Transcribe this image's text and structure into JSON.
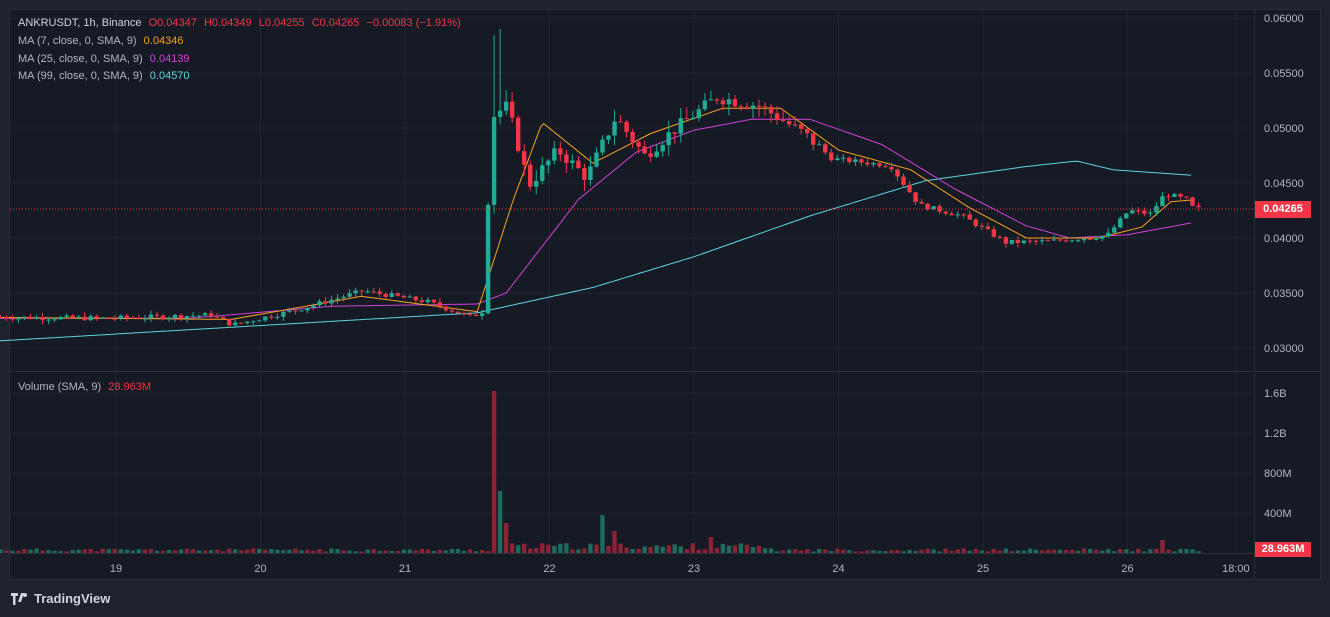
{
  "symbol": {
    "pair": "ANKRUSDT, 1h, Binance",
    "o": "O0.04347",
    "h": "H0.04349",
    "l": "L0.04255",
    "c": "C0.04265",
    "change": "−0.00083 (−1.91%)"
  },
  "indicators": [
    {
      "label": "MA (7, close, 0, SMA, 9)",
      "value": "0.04346",
      "color": "#f7a21b"
    },
    {
      "label": "MA (25, close, 0, SMA, 9)",
      "value": "0.04139",
      "color": "#d042d6"
    },
    {
      "label": "MA (99, close, 0, SMA, 9)",
      "value": "0.04570",
      "color": "#5cd6e0"
    }
  ],
  "volume": {
    "label": "Volume (SMA, 9)",
    "value": "28.963M"
  },
  "price_axis": [
    "0.06000",
    "0.05500",
    "0.05000",
    "0.04500",
    "0.04000",
    "0.03500",
    "0.03000"
  ],
  "volume_axis": [
    "1.6B",
    "1.2B",
    "800M",
    "400M"
  ],
  "time_axis": [
    "19",
    "20",
    "21",
    "22",
    "23",
    "24",
    "25",
    "26",
    "18:00"
  ],
  "last_price": "0.04265",
  "last_volume": "28.963M",
  "colors": {
    "up": "#22ab94",
    "down": "#f23645",
    "ma7": "#f7a21b",
    "ma25": "#d042d6",
    "ma99": "#5cd6e0",
    "grid": "#1f2431"
  },
  "brand": "TradingView",
  "chart_data": {
    "type": "candlestick",
    "price_range": [
      0.029,
      0.0612
    ],
    "volume_range": [
      0,
      1.6
    ],
    "price_key_points": [
      {
        "day": 18.2,
        "price": 0.0328
      },
      {
        "day": 19.0,
        "price": 0.0327
      },
      {
        "day": 19.7,
        "price": 0.033
      },
      {
        "day": 19.85,
        "price": 0.0321
      },
      {
        "day": 20.3,
        "price": 0.0335
      },
      {
        "day": 20.75,
        "price": 0.0352
      },
      {
        "day": 21.2,
        "price": 0.0342
      },
      {
        "day": 21.5,
        "price": 0.0328
      },
      {
        "day": 21.6,
        "price": 0.0335
      },
      {
        "day": 21.63,
        "price": 0.051
      },
      {
        "day": 21.75,
        "price": 0.052
      },
      {
        "day": 21.9,
        "price": 0.0448
      },
      {
        "day": 22.1,
        "price": 0.048
      },
      {
        "day": 22.3,
        "price": 0.0455
      },
      {
        "day": 22.5,
        "price": 0.051
      },
      {
        "day": 22.7,
        "price": 0.0475
      },
      {
        "day": 22.9,
        "price": 0.0498
      },
      {
        "day": 23.2,
        "price": 0.0528
      },
      {
        "day": 23.5,
        "price": 0.052
      },
      {
        "day": 23.8,
        "price": 0.0495
      },
      {
        "day": 24.0,
        "price": 0.0472
      },
      {
        "day": 24.4,
        "price": 0.0466
      },
      {
        "day": 24.6,
        "price": 0.043
      },
      {
        "day": 24.9,
        "price": 0.042
      },
      {
        "day": 25.2,
        "price": 0.0396
      },
      {
        "day": 25.5,
        "price": 0.0397
      },
      {
        "day": 25.9,
        "price": 0.0402
      },
      {
        "day": 26.05,
        "price": 0.0425
      },
      {
        "day": 26.2,
        "price": 0.0422
      },
      {
        "day": 26.3,
        "price": 0.044
      },
      {
        "day": 26.45,
        "price": 0.0435
      },
      {
        "day": 26.5,
        "price": 0.04265
      }
    ],
    "ma99_points": [
      {
        "day": 18.0,
        "price": 0.0305
      },
      {
        "day": 21.5,
        "price": 0.0332
      },
      {
        "day": 22.3,
        "price": 0.0355
      },
      {
        "day": 23.0,
        "price": 0.0383
      },
      {
        "day": 23.8,
        "price": 0.042
      },
      {
        "day": 24.6,
        "price": 0.0452
      },
      {
        "day": 25.3,
        "price": 0.0465
      },
      {
        "day": 25.65,
        "price": 0.047
      },
      {
        "day": 25.9,
        "price": 0.0462
      },
      {
        "day": 26.45,
        "price": 0.0457
      }
    ],
    "ma25_points": [
      {
        "day": 18.0,
        "price": 0.0327
      },
      {
        "day": 19.5,
        "price": 0.0327
      },
      {
        "day": 20.5,
        "price": 0.0338
      },
      {
        "day": 21.5,
        "price": 0.034
      },
      {
        "day": 21.7,
        "price": 0.035
      },
      {
        "day": 22.2,
        "price": 0.0435
      },
      {
        "day": 22.6,
        "price": 0.0478
      },
      {
        "day": 23.0,
        "price": 0.0498
      },
      {
        "day": 23.4,
        "price": 0.0508
      },
      {
        "day": 23.8,
        "price": 0.0508
      },
      {
        "day": 24.3,
        "price": 0.0485
      },
      {
        "day": 24.8,
        "price": 0.0445
      },
      {
        "day": 25.3,
        "price": 0.0411
      },
      {
        "day": 25.6,
        "price": 0.04
      },
      {
        "day": 26.0,
        "price": 0.0403
      },
      {
        "day": 26.45,
        "price": 0.04139
      }
    ],
    "ma7_points": [
      {
        "day": 18.0,
        "price": 0.0328
      },
      {
        "day": 19.8,
        "price": 0.0326
      },
      {
        "day": 20.7,
        "price": 0.0347
      },
      {
        "day": 21.5,
        "price": 0.0333
      },
      {
        "day": 21.75,
        "price": 0.0435
      },
      {
        "day": 21.95,
        "price": 0.0505
      },
      {
        "day": 22.3,
        "price": 0.0468
      },
      {
        "day": 22.7,
        "price": 0.0495
      },
      {
        "day": 23.2,
        "price": 0.0518
      },
      {
        "day": 23.6,
        "price": 0.0518
      },
      {
        "day": 24.0,
        "price": 0.048
      },
      {
        "day": 24.5,
        "price": 0.0462
      },
      {
        "day": 24.9,
        "price": 0.0428
      },
      {
        "day": 25.3,
        "price": 0.04
      },
      {
        "day": 25.8,
        "price": 0.04
      },
      {
        "day": 26.1,
        "price": 0.041
      },
      {
        "day": 26.3,
        "price": 0.0433
      },
      {
        "day": 26.45,
        "price": 0.04346
      }
    ],
    "volume_spikes": [
      {
        "day": 21.6,
        "volume_b": 1.62
      },
      {
        "day": 21.65,
        "volume_b": 0.62
      },
      {
        "day": 21.7,
        "volume_b": 0.3
      },
      {
        "day": 22.38,
        "volume_b": 0.38
      },
      {
        "day": 22.45,
        "volume_b": 0.22
      },
      {
        "day": 23.1,
        "volume_b": 0.16
      },
      {
        "day": 26.25,
        "volume_b": 0.13
      }
    ],
    "baseline_volume_b": 0.03
  }
}
